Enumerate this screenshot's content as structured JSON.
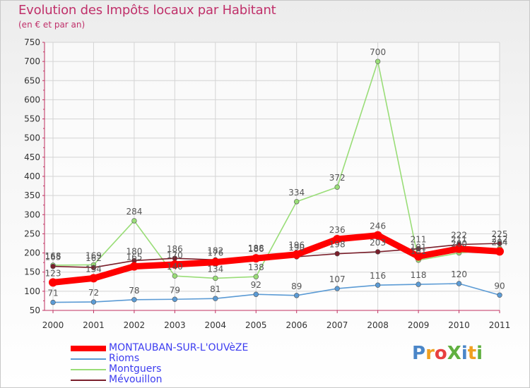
{
  "title": "Evolution des Impôts locaux par Habitant",
  "subtitle": "(en € et par an)",
  "chart_data": {
    "type": "line",
    "title": "Evolution des Impôts locaux par Habitant",
    "subtitle": "(en € et par an)",
    "xlabel": "",
    "ylabel": "",
    "ylim": [
      50,
      750
    ],
    "ytick_step": 50,
    "grid": true,
    "legend_position": "bottom-left",
    "categories": [
      "2000",
      "2001",
      "2002",
      "2003",
      "2004",
      "2005",
      "2006",
      "2007",
      "2008",
      "2009",
      "2010",
      "2011"
    ],
    "series": [
      {
        "name": "MONTAUBAN-SUR-L'OUVèZE",
        "color": "#ff0000",
        "values": [
          123,
          134,
          165,
          170,
          176,
          186,
          196,
          236,
          246,
          191,
          211,
          204
        ]
      },
      {
        "name": "Rioms",
        "color": "#5b9bd5",
        "values": [
          71,
          72,
          78,
          79,
          81,
          92,
          89,
          107,
          116,
          118,
          120,
          90
        ]
      },
      {
        "name": "Montguers",
        "color": "#99dd77",
        "values": [
          168,
          169,
          284,
          140,
          134,
          138,
          334,
          372,
          700,
          181,
          200,
          212
        ]
      },
      {
        "name": "Mévouillon",
        "color": "#7a1f2b",
        "values": [
          165,
          162,
          180,
          186,
          182,
          188,
          190,
          198,
          203,
          211,
          222,
          225
        ]
      }
    ]
  },
  "logo": {
    "text": "ProXiti",
    "letters": [
      "P",
      "r",
      "o",
      "X",
      "i",
      "t",
      "i"
    ],
    "colors": [
      "#4a86c8",
      "#f0a020",
      "#e84040",
      "#60b040",
      "#4a86c8",
      "#f0a020",
      "#60b040"
    ]
  }
}
